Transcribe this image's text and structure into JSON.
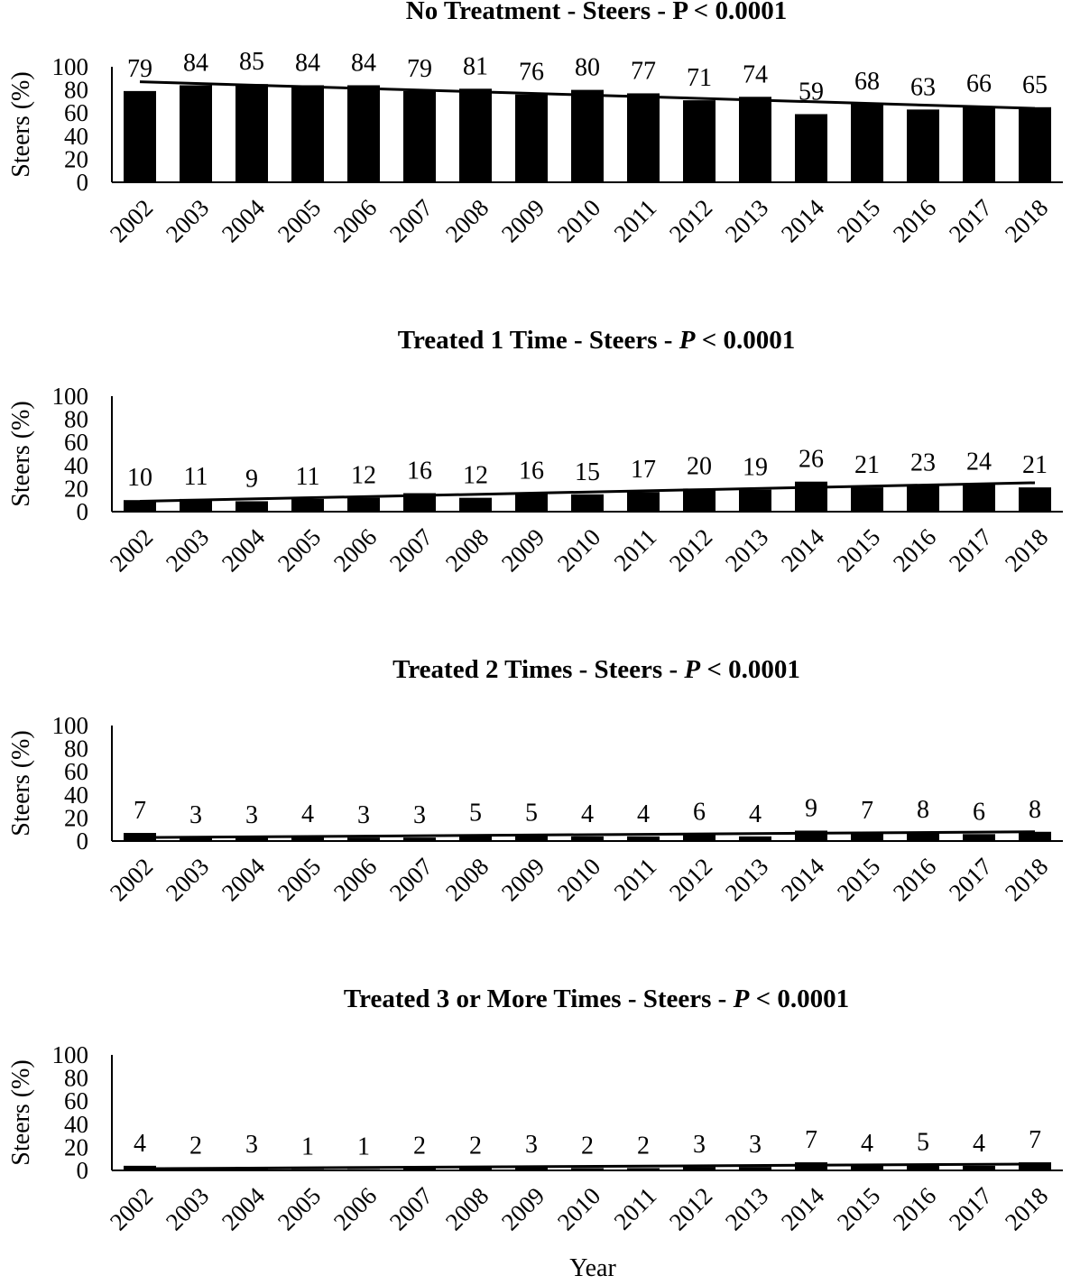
{
  "figure": {
    "xlabel": "Year",
    "bar_color": "#000000",
    "trend_color": "#000000"
  },
  "chart_data": [
    {
      "type": "bar",
      "title_parts": [
        {
          "text": "No Treatment - Steers - P < 0.0001",
          "italic": false
        }
      ],
      "ylabel": "Steers (%)",
      "ylim": [
        0,
        100
      ],
      "yticks": [
        0,
        20,
        40,
        60,
        80,
        100
      ],
      "categories": [
        "2002",
        "2003",
        "2004",
        "2005",
        "2006",
        "2007",
        "2008",
        "2009",
        "2010",
        "2011",
        "2012",
        "2013",
        "2014",
        "2015",
        "2016",
        "2017",
        "2018"
      ],
      "values": [
        79,
        84,
        85,
        84,
        84,
        79,
        81,
        76,
        80,
        77,
        71,
        74,
        59,
        68,
        63,
        66,
        65
      ],
      "trendline": {
        "start": 87,
        "end": 64
      }
    },
    {
      "type": "bar",
      "title_parts": [
        {
          "text": "Treated 1 Time - Steers - ",
          "italic": false
        },
        {
          "text": "P",
          "italic": true
        },
        {
          "text": " < 0.0001",
          "italic": false
        }
      ],
      "ylabel": "Steers (%)",
      "ylim": [
        0,
        100
      ],
      "yticks": [
        0,
        20,
        40,
        60,
        80,
        100
      ],
      "categories": [
        "2002",
        "2003",
        "2004",
        "2005",
        "2006",
        "2007",
        "2008",
        "2009",
        "2010",
        "2011",
        "2012",
        "2013",
        "2014",
        "2015",
        "2016",
        "2017",
        "2018"
      ],
      "values": [
        10,
        11,
        9,
        11,
        12,
        16,
        12,
        16,
        15,
        17,
        20,
        19,
        26,
        21,
        23,
        24,
        21
      ],
      "trendline": {
        "start": 9,
        "end": 25
      }
    },
    {
      "type": "bar",
      "title_parts": [
        {
          "text": "Treated 2 Times - Steers - ",
          "italic": false
        },
        {
          "text": "P",
          "italic": true
        },
        {
          "text": " < 0.0001",
          "italic": false
        }
      ],
      "ylabel": "Steers (%)",
      "ylim": [
        0,
        100
      ],
      "yticks": [
        0,
        20,
        40,
        60,
        80,
        100
      ],
      "categories": [
        "2002",
        "2003",
        "2004",
        "2005",
        "2006",
        "2007",
        "2008",
        "2009",
        "2010",
        "2011",
        "2012",
        "2013",
        "2014",
        "2015",
        "2016",
        "2017",
        "2018"
      ],
      "values": [
        7,
        3,
        3,
        4,
        3,
        3,
        5,
        5,
        4,
        4,
        6,
        4,
        9,
        7,
        8,
        6,
        8
      ],
      "trendline": {
        "start": 3,
        "end": 8
      }
    },
    {
      "type": "bar",
      "title_parts": [
        {
          "text": "Treated 3 or More Times - Steers - ",
          "italic": false
        },
        {
          "text": "P",
          "italic": true
        },
        {
          "text": " < 0.0001",
          "italic": false
        }
      ],
      "ylabel": "Steers (%)",
      "ylim": [
        0,
        100
      ],
      "yticks": [
        0,
        20,
        40,
        60,
        80,
        100
      ],
      "categories": [
        "2002",
        "2003",
        "2004",
        "2005",
        "2006",
        "2007",
        "2008",
        "2009",
        "2010",
        "2011",
        "2012",
        "2013",
        "2014",
        "2015",
        "2016",
        "2017",
        "2018"
      ],
      "values": [
        4,
        2,
        3,
        1,
        1,
        2,
        2,
        3,
        2,
        2,
        3,
        3,
        7,
        4,
        5,
        4,
        7
      ],
      "trendline": {
        "start": 1.5,
        "end": 5.5
      }
    }
  ]
}
